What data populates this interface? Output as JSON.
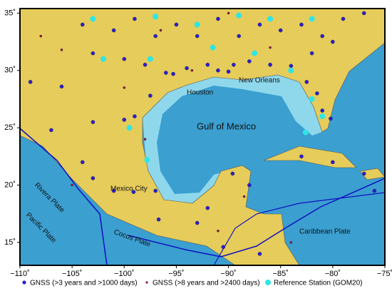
{
  "map": {
    "xlim": [
      -110,
      -75
    ],
    "ylim": [
      13,
      35.4
    ],
    "xticks": [
      {
        "value": -110,
        "label": "−110˚"
      },
      {
        "value": -105,
        "label": "−105˚"
      },
      {
        "value": -100,
        "label": "−100˚"
      },
      {
        "value": -95,
        "label": "−95˚"
      },
      {
        "value": -90,
        "label": "−90˚"
      },
      {
        "value": -85,
        "label": "−85˚"
      },
      {
        "value": -80,
        "label": "−80˚"
      },
      {
        "value": -75,
        "label": "−75˚"
      }
    ],
    "yticks": [
      {
        "value": 15,
        "label": "15˚"
      },
      {
        "value": 20,
        "label": "20˚"
      },
      {
        "value": 25,
        "label": "25˚"
      },
      {
        "value": 30,
        "label": "30˚"
      },
      {
        "value": 35,
        "label": "35˚"
      }
    ],
    "places": [
      "Houston",
      "New Orleans",
      "Gulf of Mexico",
      "Mexico City",
      "Rivera Plate",
      "Pacific Plate",
      "Cocos Plate",
      "Caribbean Plate"
    ],
    "series": [
      {
        "name": "GNSS (>3 years and >1000 days)",
        "color": "#2a1fd0",
        "points": [
          [
            -104,
            34
          ],
          [
            -101,
            33.5
          ],
          [
            -99,
            34.5
          ],
          [
            -97,
            33
          ],
          [
            -95,
            34
          ],
          [
            -93,
            33
          ],
          [
            -91,
            34.5
          ],
          [
            -89,
            33
          ],
          [
            -87,
            34
          ],
          [
            -85,
            33.5
          ],
          [
            -83,
            34
          ],
          [
            -81,
            33
          ],
          [
            -79,
            34.5
          ],
          [
            -77,
            35
          ],
          [
            -103,
            31.5
          ],
          [
            -100,
            31
          ],
          [
            -98,
            30.5
          ],
          [
            -96,
            29.8
          ],
          [
            -95.3,
            29.7
          ],
          [
            -94,
            30.2
          ],
          [
            -92,
            30.5
          ],
          [
            -91,
            30
          ],
          [
            -90,
            29.9
          ],
          [
            -89.5,
            30.5
          ],
          [
            -88,
            30.8
          ],
          [
            -86,
            30.5
          ],
          [
            -84,
            30.4
          ],
          [
            -82.5,
            29
          ],
          [
            -81.5,
            28
          ],
          [
            -81,
            26.5
          ],
          [
            -80.2,
            25.8
          ],
          [
            -82,
            31.5
          ],
          [
            -80,
            32.5
          ],
          [
            -97.5,
            27.8
          ],
          [
            -99,
            26
          ],
          [
            -100,
            25.7
          ],
          [
            -103,
            25.5
          ],
          [
            -106,
            28.6
          ],
          [
            -109,
            29
          ],
          [
            -107,
            24.8
          ],
          [
            -104,
            22
          ],
          [
            -103,
            20.6
          ],
          [
            -101,
            19.5
          ],
          [
            -99.1,
            19.4
          ],
          [
            -97,
            19.5
          ],
          [
            -96.7,
            17
          ],
          [
            -93,
            16.7
          ],
          [
            -92,
            18
          ],
          [
            -89.6,
            21
          ],
          [
            -88,
            20
          ],
          [
            -90.5,
            14.6
          ],
          [
            -87,
            14
          ],
          [
            -83,
            22.5
          ],
          [
            -80,
            22
          ],
          [
            -77,
            21
          ],
          [
            -76,
            19.5
          ]
        ]
      },
      {
        "name": "GNSS (>8 years and >2400 days)",
        "color": "#8a1a50",
        "points": [
          [
            -106,
            31.8
          ],
          [
            -108,
            33
          ],
          [
            -100,
            28.5
          ],
          [
            -98,
            24
          ],
          [
            -105,
            20
          ],
          [
            -93.5,
            30
          ],
          [
            -90,
            35
          ],
          [
            -86,
            32
          ],
          [
            -96.5,
            33.5
          ],
          [
            -88.5,
            19
          ],
          [
            -84,
            15
          ],
          [
            -91,
            16
          ]
        ]
      },
      {
        "name": "Reference Station (GOM20)",
        "color": "#2ee6e6",
        "points": [
          [
            -103,
            34.5
          ],
          [
            -97,
            34.7
          ],
          [
            -93,
            34
          ],
          [
            -89,
            34.8
          ],
          [
            -86,
            34.5
          ],
          [
            -82,
            34.5
          ],
          [
            -102,
            31
          ],
          [
            -97.5,
            31
          ],
          [
            -91.5,
            32
          ],
          [
            -87.5,
            31.5
          ],
          [
            -84,
            30
          ],
          [
            -82,
            27.5
          ],
          [
            -81,
            26
          ],
          [
            -97.8,
            22.2
          ],
          [
            -99.5,
            25
          ],
          [
            -82.6,
            24.6
          ]
        ]
      }
    ]
  }
}
